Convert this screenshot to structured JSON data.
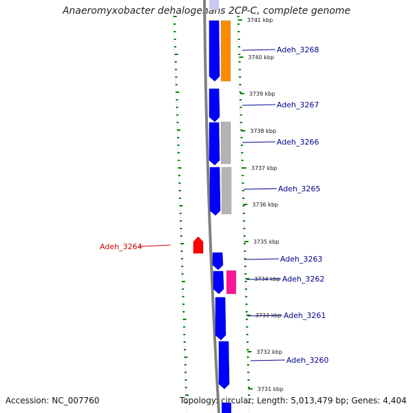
{
  "header": {
    "title": "Anaeromyxobacter dehalogenans 2CP-C, complete genome"
  },
  "footer": {
    "accession": "Accession: NC_007760",
    "summary": "Topology: circular; Length: 5,013,479 bp; Genes: 4,404"
  },
  "colors": {
    "backbone": "#808080",
    "forward_gene": "#0000ff",
    "reverse_gene": "#ff0000",
    "tick_minor": "#008000",
    "label_blue": "#00008b",
    "label_red": "#cc0000",
    "cog_orange": "#ff8c00",
    "cog_gray": "#b4b4b4",
    "cog_pink": "#ff1493",
    "partial_gene": "#c8c8f0"
  },
  "ticks": [
    {
      "label": "3741 kbp"
    },
    {
      "label": "3740 kbp"
    },
    {
      "label": "3739 kbp"
    },
    {
      "label": "3738 kbp"
    },
    {
      "label": "3737 kbp"
    },
    {
      "label": "3736 kbp"
    },
    {
      "label": "3735 kbp"
    },
    {
      "label": "3734 kbp"
    },
    {
      "label": "3733 kbp"
    },
    {
      "label": "3732 kbp"
    },
    {
      "label": "3731 kbp"
    }
  ],
  "genes": [
    {
      "name": "Adeh_3268",
      "strand": "forward",
      "cog": "orange"
    },
    {
      "name": "Adeh_3267",
      "strand": "forward",
      "cog": "none"
    },
    {
      "name": "Adeh_3266",
      "strand": "forward",
      "cog": "gray"
    },
    {
      "name": "Adeh_3265",
      "strand": "forward",
      "cog": "gray"
    },
    {
      "name": "Adeh_3264",
      "strand": "reverse",
      "cog": "none"
    },
    {
      "name": "Adeh_3263",
      "strand": "forward",
      "cog": "none"
    },
    {
      "name": "Adeh_3262",
      "strand": "forward",
      "cog": "pink"
    },
    {
      "name": "Adeh_3261",
      "strand": "forward",
      "cog": "none"
    },
    {
      "name": "Adeh_3260",
      "strand": "forward",
      "cog": "none"
    }
  ]
}
